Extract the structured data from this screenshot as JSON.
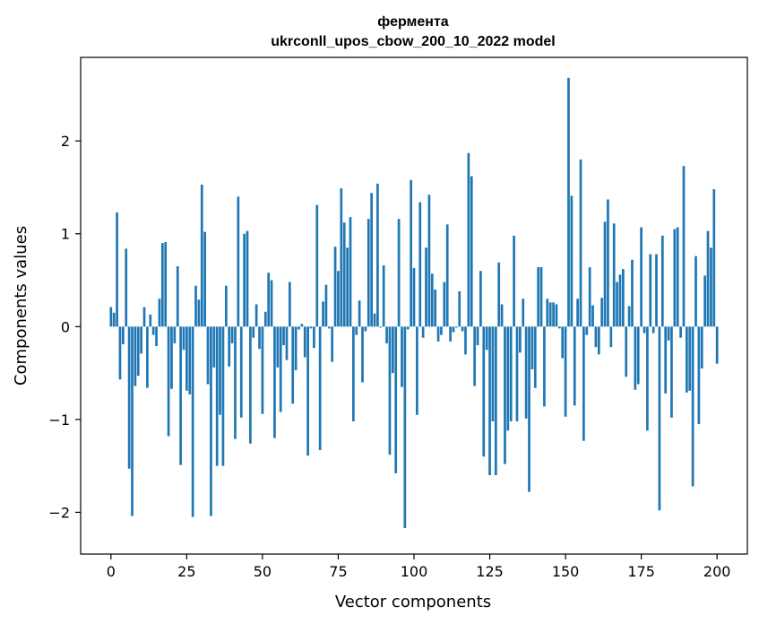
{
  "chart_data": {
    "type": "bar",
    "title_line1": "фермента",
    "title_line2": "ukrconll_upos_cbow_200_10_2022 model",
    "xlabel": "Vector components",
    "ylabel": "Components values",
    "xlim": [
      -10,
      210
    ],
    "ylim": [
      -2.45,
      2.9
    ],
    "xticks": [
      0,
      25,
      50,
      75,
      100,
      125,
      150,
      175,
      200
    ],
    "xtick_labels": [
      "0",
      "25",
      "50",
      "75",
      "100",
      "125",
      "150",
      "175",
      "200"
    ],
    "yticks": [
      -2,
      -1,
      0,
      1,
      2
    ],
    "ytick_labels": [
      "−2",
      "−1",
      "0",
      "1",
      "2"
    ],
    "bar_color": "#1f77b4",
    "grid": false,
    "values": [
      0.21,
      0.15,
      1.23,
      -0.57,
      -0.19,
      0.84,
      -1.53,
      -2.04,
      -0.64,
      -0.53,
      -0.29,
      0.21,
      -0.66,
      0.13,
      -0.09,
      -0.21,
      0.3,
      0.9,
      0.91,
      -1.18,
      -0.67,
      -0.18,
      0.65,
      -1.49,
      -0.25,
      -0.69,
      -0.73,
      -2.05,
      0.44,
      0.29,
      1.53,
      1.02,
      -0.62,
      -2.04,
      -0.44,
      -1.5,
      -0.95,
      -1.5,
      0.44,
      -0.43,
      -0.18,
      -1.21,
      1.4,
      -0.98,
      1.0,
      1.03,
      -1.26,
      -0.12,
      0.24,
      -0.24,
      -0.94,
      0.16,
      0.58,
      0.5,
      -1.2,
      -0.44,
      -0.92,
      -0.2,
      -0.36,
      0.48,
      -0.83,
      -0.47,
      -0.03,
      0.03,
      -0.33,
      -1.39,
      -0.02,
      -0.23,
      1.31,
      -1.33,
      0.27,
      0.45,
      -0.02,
      -0.38,
      0.86,
      0.6,
      1.49,
      1.12,
      0.85,
      1.18,
      -1.02,
      -0.09,
      0.28,
      -0.6,
      -0.05,
      1.16,
      1.44,
      0.14,
      1.54,
      -0.01,
      0.66,
      -0.18,
      -1.38,
      -0.5,
      -1.58,
      1.16,
      -0.65,
      -2.17,
      -0.03,
      1.58,
      0.63,
      -0.95,
      1.34,
      -0.12,
      0.85,
      1.42,
      0.57,
      0.4,
      -0.16,
      -0.09,
      0.48,
      1.1,
      -0.16,
      -0.06,
      -0.01,
      0.38,
      -0.05,
      -0.3,
      1.87,
      1.62,
      -0.64,
      -0.2,
      0.6,
      -1.4,
      -0.25,
      -1.6,
      -1.02,
      -1.6,
      0.69,
      0.24,
      -1.48,
      -1.12,
      -1.02,
      0.98,
      -1.02,
      -0.28,
      0.3,
      -0.99,
      -1.78,
      -0.46,
      -0.66,
      0.64,
      0.64,
      -0.86,
      0.3,
      0.26,
      0.26,
      0.24,
      -0.02,
      -0.34,
      -0.97,
      2.68,
      1.41,
      -0.85,
      0.3,
      1.8,
      -1.23,
      -0.09,
      0.64,
      0.23,
      -0.22,
      -0.3,
      0.31,
      1.13,
      1.37,
      -0.22,
      1.11,
      0.48,
      0.56,
      0.62,
      -0.54,
      0.22,
      0.72,
      -0.68,
      -0.62,
      1.07,
      -0.07,
      -1.12,
      0.78,
      -0.07,
      0.78,
      -1.98,
      0.98,
      -0.72,
      -0.15,
      -0.98,
      1.05,
      1.07,
      -0.12,
      1.73,
      -0.71,
      -0.69,
      -1.72,
      0.76,
      -1.05,
      -0.45,
      0.55,
      1.03,
      0.85,
      1.48,
      -0.4
    ]
  }
}
